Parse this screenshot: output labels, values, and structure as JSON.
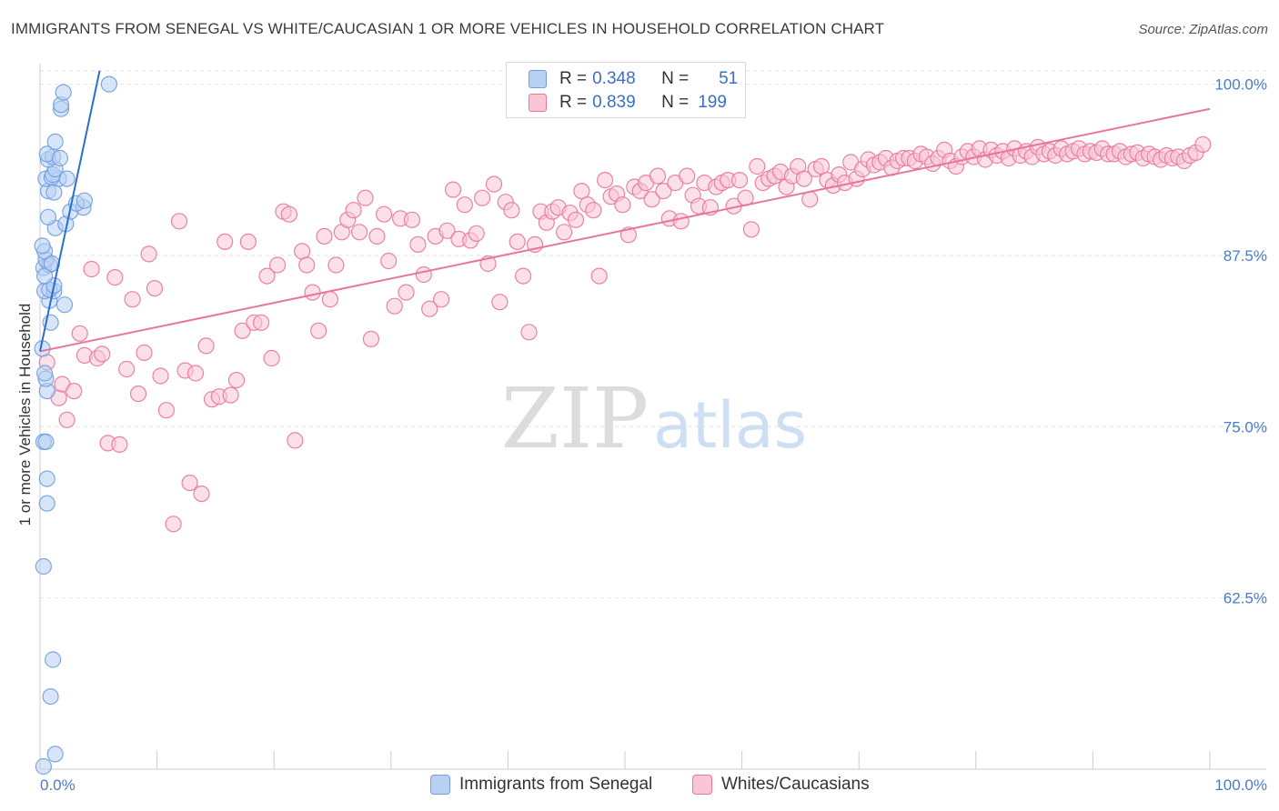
{
  "title": "IMMIGRANTS FROM SENEGAL VS WHITE/CAUCASIAN 1 OR MORE VEHICLES IN HOUSEHOLD CORRELATION CHART",
  "source": "Source: ZipAtlas.com",
  "watermark": {
    "zip": "ZIP",
    "atlas": "atlas"
  },
  "legend": {
    "r_label": "R =",
    "n_label": "N =",
    "rows": [
      {
        "r": "0.348",
        "n": "51"
      },
      {
        "r": "0.839",
        "n": "199"
      }
    ]
  },
  "chart_data": {
    "type": "scatter",
    "title": "IMMIGRANTS FROM SENEGAL VS WHITE/CAUCASIAN 1 OR MORE VEHICLES IN HOUSEHOLD CORRELATION CHART",
    "xlabel": "",
    "ylabel": "1 or more Vehicles in Household",
    "xlim": [
      0,
      100
    ],
    "ylim": [
      50,
      101.5
    ],
    "x_tick_labels": [
      "0.0%",
      "100.0%"
    ],
    "y_ticks": [
      {
        "value": 100,
        "label": "100.0%"
      },
      {
        "value": 87.5,
        "label": "87.5%"
      },
      {
        "value": 75,
        "label": "75.0%"
      },
      {
        "value": 62.5,
        "label": "62.5%"
      }
    ],
    "grid": true,
    "legend_position": "bottom",
    "series": [
      {
        "name": "Immigrants from Senegal",
        "color": "#6f9fe0",
        "fill": "#b8d0f3",
        "trend": {
          "x": [
            0,
            5.1
          ],
          "y": [
            80.5,
            101.0
          ]
        },
        "points": [
          [
            0.3,
            50.2
          ],
          [
            1.3,
            51.1
          ],
          [
            0.9,
            55.3
          ],
          [
            1.1,
            58.0
          ],
          [
            0.3,
            64.8
          ],
          [
            0.6,
            69.4
          ],
          [
            0.6,
            71.2
          ],
          [
            0.3,
            73.9
          ],
          [
            0.5,
            73.9
          ],
          [
            0.6,
            77.6
          ],
          [
            0.5,
            78.5
          ],
          [
            0.4,
            78.9
          ],
          [
            0.2,
            80.7
          ],
          [
            0.9,
            82.6
          ],
          [
            0.8,
            84.2
          ],
          [
            2.1,
            83.9
          ],
          [
            0.4,
            84.9
          ],
          [
            1.2,
            84.9
          ],
          [
            0.8,
            85.0
          ],
          [
            1.2,
            85.3
          ],
          [
            0.3,
            86.6
          ],
          [
            0.8,
            86.8
          ],
          [
            0.5,
            87.2
          ],
          [
            0.4,
            87.8
          ],
          [
            0.2,
            88.2
          ],
          [
            1.3,
            89.5
          ],
          [
            2.2,
            89.8
          ],
          [
            0.7,
            90.3
          ],
          [
            2.6,
            90.7
          ],
          [
            3.7,
            91.0
          ],
          [
            3.1,
            91.3
          ],
          [
            3.8,
            91.5
          ],
          [
            0.7,
            92.2
          ],
          [
            1.2,
            92.1
          ],
          [
            0.5,
            93.1
          ],
          [
            1.6,
            93.1
          ],
          [
            2.3,
            93.1
          ],
          [
            1.0,
            93.2
          ],
          [
            1.1,
            93.4
          ],
          [
            1.3,
            93.8
          ],
          [
            0.7,
            94.5
          ],
          [
            1.1,
            94.7
          ],
          [
            0.6,
            94.9
          ],
          [
            1.7,
            94.6
          ],
          [
            1.3,
            95.8
          ],
          [
            1.8,
            98.2
          ],
          [
            1.8,
            98.5
          ],
          [
            2.0,
            99.4
          ],
          [
            5.9,
            100.0
          ],
          [
            0.4,
            86.0
          ],
          [
            1.0,
            86.9
          ]
        ]
      },
      {
        "name": "Whites/Caucasians",
        "color": "#e8769b",
        "fill": "#f8c6d6",
        "trend": {
          "x": [
            0,
            100
          ],
          "y": [
            80.5,
            98.2
          ]
        },
        "points": [
          [
            0.6,
            79.7
          ],
          [
            1.6,
            77.1
          ],
          [
            1.9,
            78.1
          ],
          [
            2.3,
            75.5
          ],
          [
            2.9,
            77.6
          ],
          [
            3.4,
            81.8
          ],
          [
            3.8,
            80.2
          ],
          [
            4.4,
            86.5
          ],
          [
            4.9,
            80.0
          ],
          [
            5.3,
            80.3
          ],
          [
            5.8,
            73.8
          ],
          [
            6.4,
            85.9
          ],
          [
            6.8,
            73.7
          ],
          [
            7.4,
            79.2
          ],
          [
            7.9,
            84.3
          ],
          [
            8.4,
            77.4
          ],
          [
            8.9,
            80.4
          ],
          [
            9.3,
            87.6
          ],
          [
            9.8,
            85.1
          ],
          [
            10.3,
            78.7
          ],
          [
            10.8,
            76.2
          ],
          [
            11.4,
            67.9
          ],
          [
            11.9,
            90.0
          ],
          [
            12.4,
            79.1
          ],
          [
            12.8,
            70.9
          ],
          [
            13.3,
            78.9
          ],
          [
            13.8,
            70.1
          ],
          [
            14.2,
            80.9
          ],
          [
            14.7,
            77.0
          ],
          [
            15.3,
            77.2
          ],
          [
            15.8,
            88.5
          ],
          [
            16.3,
            77.3
          ],
          [
            16.8,
            78.4
          ],
          [
            17.3,
            82.0
          ],
          [
            17.8,
            88.5
          ],
          [
            18.3,
            82.6
          ],
          [
            18.9,
            82.6
          ],
          [
            19.4,
            86.0
          ],
          [
            19.8,
            80.0
          ],
          [
            20.3,
            86.8
          ],
          [
            20.8,
            90.7
          ],
          [
            21.3,
            90.5
          ],
          [
            21.8,
            74.0
          ],
          [
            22.4,
            87.8
          ],
          [
            22.8,
            86.8
          ],
          [
            23.3,
            84.8
          ],
          [
            23.8,
            82.0
          ],
          [
            24.3,
            88.9
          ],
          [
            24.8,
            84.3
          ],
          [
            25.3,
            86.8
          ],
          [
            25.8,
            89.2
          ],
          [
            26.3,
            90.1
          ],
          [
            26.8,
            90.8
          ],
          [
            27.3,
            89.2
          ],
          [
            27.8,
            91.7
          ],
          [
            28.3,
            81.4
          ],
          [
            28.8,
            88.9
          ],
          [
            29.4,
            90.5
          ],
          [
            29.8,
            87.1
          ],
          [
            30.3,
            83.8
          ],
          [
            30.8,
            90.2
          ],
          [
            31.3,
            84.8
          ],
          [
            31.8,
            90.1
          ],
          [
            32.3,
            88.3
          ],
          [
            32.8,
            86.1
          ],
          [
            33.3,
            83.6
          ],
          [
            33.8,
            88.9
          ],
          [
            34.3,
            84.3
          ],
          [
            34.8,
            89.3
          ],
          [
            35.3,
            92.3
          ],
          [
            35.8,
            88.7
          ],
          [
            36.3,
            91.2
          ],
          [
            36.8,
            88.6
          ],
          [
            37.3,
            89.1
          ],
          [
            37.8,
            91.7
          ],
          [
            38.3,
            86.9
          ],
          [
            38.8,
            92.7
          ],
          [
            39.3,
            84.1
          ],
          [
            39.8,
            91.4
          ],
          [
            40.3,
            90.8
          ],
          [
            40.8,
            88.5
          ],
          [
            41.3,
            86.0
          ],
          [
            41.8,
            81.9
          ],
          [
            42.3,
            88.3
          ],
          [
            42.8,
            90.7
          ],
          [
            43.3,
            89.9
          ],
          [
            43.8,
            90.7
          ],
          [
            44.3,
            91.0
          ],
          [
            44.8,
            89.2
          ],
          [
            45.3,
            90.6
          ],
          [
            45.8,
            90.1
          ],
          [
            46.3,
            92.2
          ],
          [
            46.8,
            91.2
          ],
          [
            47.3,
            90.8
          ],
          [
            47.8,
            86.0
          ],
          [
            48.3,
            93.0
          ],
          [
            48.8,
            91.8
          ],
          [
            49.3,
            92.0
          ],
          [
            49.8,
            91.2
          ],
          [
            50.3,
            89.0
          ],
          [
            50.8,
            92.5
          ],
          [
            51.3,
            92.2
          ],
          [
            51.8,
            92.8
          ],
          [
            52.3,
            91.6
          ],
          [
            52.8,
            93.3
          ],
          [
            53.3,
            92.2
          ],
          [
            53.8,
            90.2
          ],
          [
            54.3,
            92.8
          ],
          [
            54.8,
            90.0
          ],
          [
            55.3,
            93.3
          ],
          [
            55.8,
            91.9
          ],
          [
            56.3,
            91.1
          ],
          [
            56.8,
            92.8
          ],
          [
            57.3,
            91.0
          ],
          [
            57.8,
            92.5
          ],
          [
            58.3,
            92.8
          ],
          [
            58.8,
            93.0
          ],
          [
            59.3,
            91.1
          ],
          [
            59.8,
            93.0
          ],
          [
            60.3,
            91.7
          ],
          [
            60.8,
            89.4
          ],
          [
            61.3,
            94.0
          ],
          [
            61.8,
            92.8
          ],
          [
            62.3,
            93.1
          ],
          [
            62.8,
            93.3
          ],
          [
            63.3,
            93.6
          ],
          [
            63.8,
            92.5
          ],
          [
            64.3,
            93.3
          ],
          [
            64.8,
            94.0
          ],
          [
            65.3,
            93.1
          ],
          [
            65.8,
            91.6
          ],
          [
            66.3,
            93.8
          ],
          [
            66.8,
            94.0
          ],
          [
            67.3,
            93.0
          ],
          [
            67.8,
            92.6
          ],
          [
            68.3,
            93.4
          ],
          [
            68.8,
            92.8
          ],
          [
            69.3,
            94.3
          ],
          [
            69.8,
            93.1
          ],
          [
            70.3,
            93.8
          ],
          [
            70.8,
            94.5
          ],
          [
            71.3,
            94.1
          ],
          [
            71.8,
            94.3
          ],
          [
            72.3,
            94.6
          ],
          [
            72.8,
            93.9
          ],
          [
            73.3,
            94.4
          ],
          [
            73.8,
            94.6
          ],
          [
            74.3,
            94.6
          ],
          [
            74.8,
            94.4
          ],
          [
            75.3,
            94.9
          ],
          [
            75.8,
            94.7
          ],
          [
            76.3,
            94.2
          ],
          [
            76.8,
            94.6
          ],
          [
            77.3,
            95.2
          ],
          [
            77.8,
            94.4
          ],
          [
            78.3,
            94.0
          ],
          [
            78.8,
            94.7
          ],
          [
            79.3,
            95.1
          ],
          [
            79.8,
            94.7
          ],
          [
            80.3,
            95.3
          ],
          [
            80.8,
            94.5
          ],
          [
            81.3,
            95.2
          ],
          [
            81.8,
            94.8
          ],
          [
            82.3,
            95.1
          ],
          [
            82.8,
            94.6
          ],
          [
            83.3,
            95.3
          ],
          [
            83.8,
            94.8
          ],
          [
            84.3,
            95.1
          ],
          [
            84.8,
            94.7
          ],
          [
            85.3,
            95.4
          ],
          [
            85.8,
            94.9
          ],
          [
            86.3,
            95.1
          ],
          [
            86.8,
            94.8
          ],
          [
            87.3,
            95.3
          ],
          [
            87.8,
            94.9
          ],
          [
            88.3,
            95.1
          ],
          [
            88.8,
            95.3
          ],
          [
            89.3,
            94.9
          ],
          [
            89.8,
            95.1
          ],
          [
            90.3,
            95.0
          ],
          [
            90.8,
            95.3
          ],
          [
            91.3,
            94.9
          ],
          [
            91.8,
            94.9
          ],
          [
            92.3,
            95.1
          ],
          [
            92.8,
            94.7
          ],
          [
            93.3,
            94.9
          ],
          [
            93.8,
            95.0
          ],
          [
            94.3,
            94.6
          ],
          [
            94.8,
            94.9
          ],
          [
            95.3,
            94.7
          ],
          [
            95.8,
            94.5
          ],
          [
            96.3,
            94.8
          ],
          [
            96.8,
            94.6
          ],
          [
            97.3,
            94.7
          ],
          [
            97.8,
            94.4
          ],
          [
            98.3,
            94.8
          ],
          [
            98.8,
            95.0
          ],
          [
            99.4,
            95.6
          ]
        ]
      }
    ]
  }
}
